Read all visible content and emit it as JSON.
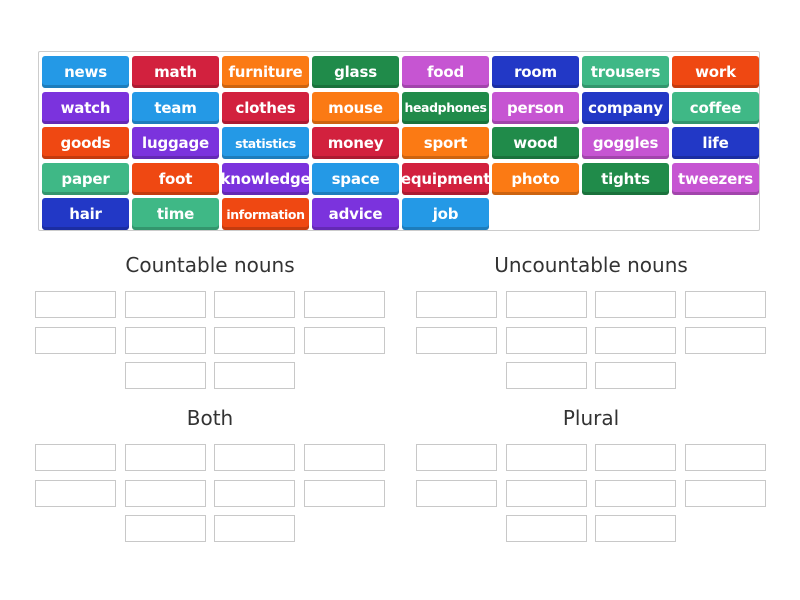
{
  "colors": {
    "blue": "#2499e6",
    "red": "#d2213e",
    "orange": "#fb7a14",
    "darkgreen": "#208b4a",
    "magenta": "#c655d2",
    "navy": "#2238c6",
    "teal": "#3fb886",
    "redorange": "#ef4812",
    "purple": "#7b33dd"
  },
  "tiles": [
    {
      "label": "news",
      "color": "blue"
    },
    {
      "label": "math",
      "color": "red"
    },
    {
      "label": "furniture",
      "color": "orange"
    },
    {
      "label": "glass",
      "color": "darkgreen"
    },
    {
      "label": "food",
      "color": "magenta"
    },
    {
      "label": "room",
      "color": "navy"
    },
    {
      "label": "trousers",
      "color": "teal"
    },
    {
      "label": "work",
      "color": "redorange"
    },
    {
      "label": "watch",
      "color": "purple"
    },
    {
      "label": "team",
      "color": "blue"
    },
    {
      "label": "clothes",
      "color": "red"
    },
    {
      "label": "mouse",
      "color": "orange"
    },
    {
      "label": "headphones",
      "color": "darkgreen"
    },
    {
      "label": "person",
      "color": "magenta"
    },
    {
      "label": "company",
      "color": "navy"
    },
    {
      "label": "coffee",
      "color": "teal"
    },
    {
      "label": "goods",
      "color": "redorange"
    },
    {
      "label": "luggage",
      "color": "purple"
    },
    {
      "label": "statistics",
      "color": "blue"
    },
    {
      "label": "money",
      "color": "red"
    },
    {
      "label": "sport",
      "color": "orange"
    },
    {
      "label": "wood",
      "color": "darkgreen"
    },
    {
      "label": "goggles",
      "color": "magenta"
    },
    {
      "label": "life",
      "color": "navy"
    },
    {
      "label": "paper",
      "color": "teal"
    },
    {
      "label": "foot",
      "color": "redorange"
    },
    {
      "label": "knowledge",
      "color": "purple"
    },
    {
      "label": "space",
      "color": "blue"
    },
    {
      "label": "equipment",
      "color": "red"
    },
    {
      "label": "photo",
      "color": "orange"
    },
    {
      "label": "tights",
      "color": "darkgreen"
    },
    {
      "label": "tweezers",
      "color": "magenta"
    },
    {
      "label": "hair",
      "color": "navy"
    },
    {
      "label": "time",
      "color": "teal"
    },
    {
      "label": "information",
      "color": "redorange"
    },
    {
      "label": "advice",
      "color": "purple"
    },
    {
      "label": "job",
      "color": "blue"
    }
  ],
  "groups": [
    {
      "title": "Countable nouns"
    },
    {
      "title": "Uncountable nouns"
    },
    {
      "title": "Both"
    },
    {
      "title": "Plural"
    }
  ]
}
